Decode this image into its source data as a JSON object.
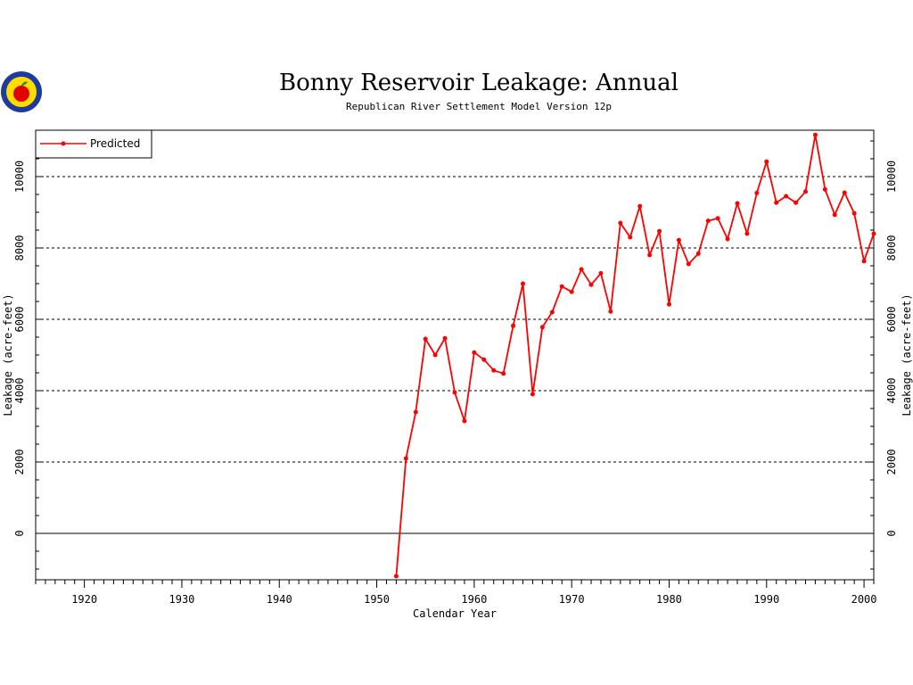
{
  "chart_data": {
    "type": "line",
    "title": "Bonny Reservoir Leakage: Annual",
    "subtitle": "Republican River Settlement Model Version 12p",
    "xlabel": "Calendar Year",
    "ylabel": "Leakage (acre-feet)",
    "xlim": [
      1915,
      2001
    ],
    "ylim": [
      -1300,
      11300
    ],
    "x_ticks": [
      1920,
      1930,
      1940,
      1950,
      1960,
      1970,
      1980,
      1990,
      2000
    ],
    "y_ticks": [
      0,
      2000,
      4000,
      6000,
      8000,
      10000
    ],
    "grid": "dashed horizontal at y ticks, solid at zero",
    "legend_position": "top-left",
    "series_color": "#ff0000",
    "series": [
      {
        "name": "Predicted",
        "x": [
          1952,
          1953,
          1954,
          1955,
          1956,
          1957,
          1958,
          1959,
          1960,
          1961,
          1962,
          1963,
          1964,
          1965,
          1966,
          1967,
          1968,
          1969,
          1970,
          1971,
          1972,
          1973,
          1974,
          1975,
          1976,
          1977,
          1978,
          1979,
          1980,
          1981,
          1982,
          1983,
          1984,
          1985,
          1986,
          1987,
          1988,
          1989,
          1990,
          1991,
          1992,
          1993,
          1994,
          1995,
          1996,
          1997,
          1998,
          1999,
          2000,
          2001
        ],
        "values": [
          -1200,
          2100,
          3400,
          5450,
          5000,
          5470,
          3950,
          3150,
          5070,
          4870,
          4570,
          4480,
          5820,
          7000,
          3900,
          5780,
          6200,
          6920,
          6770,
          7400,
          6970,
          7290,
          6220,
          8700,
          8300,
          9170,
          7800,
          8470,
          6420,
          8220,
          7550,
          7840,
          8760,
          8830,
          8250,
          9250,
          8400,
          9540,
          10420,
          9270,
          9450,
          9270,
          9580,
          11170,
          9640,
          8930,
          9550,
          8970,
          7630,
          8400
        ]
      }
    ]
  },
  "logo": {
    "colors": {
      "ring": "#1e3a9a",
      "fill": "#ffdd00",
      "apple": "#e00000",
      "leaf": "#2a8a2a"
    }
  }
}
